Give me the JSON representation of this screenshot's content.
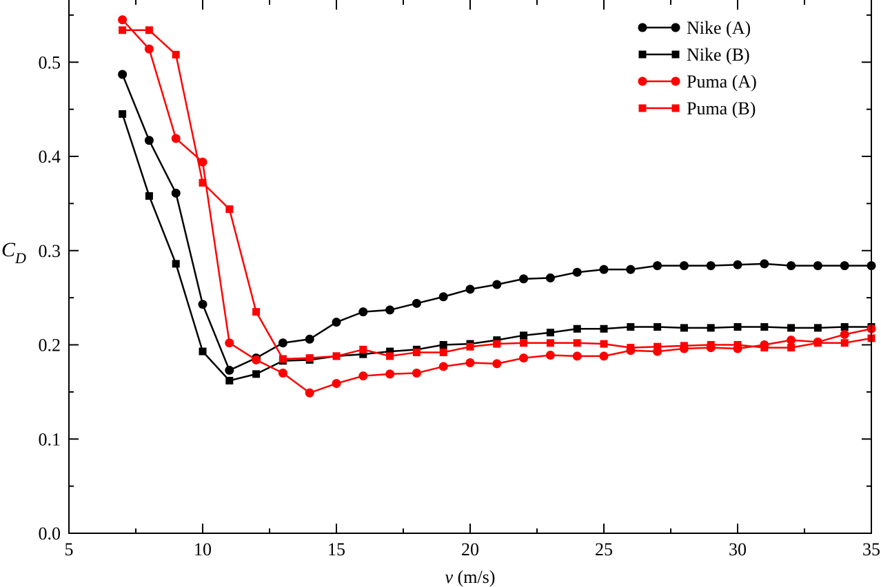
{
  "chart_data": {
    "type": "line",
    "title": "",
    "xlabel_var": "v",
    "xlabel_unit": " (m/s)",
    "ylabel_main": "C",
    "ylabel_sub": "D",
    "xlim": [
      5,
      35
    ],
    "ylim": [
      0,
      0.566
    ],
    "xticks": [
      5,
      10,
      15,
      20,
      25,
      30,
      35
    ],
    "xtick_labels": [
      "5",
      "10",
      "15",
      "20",
      "25",
      "30",
      "35"
    ],
    "yticks": [
      0,
      0.1,
      0.2,
      0.3,
      0.4,
      0.5
    ],
    "ytick_labels": [
      "0.0",
      "0.1",
      "0.2",
      "0.3",
      "0.4",
      "0.5"
    ],
    "legend_position": "top-right",
    "x": [
      7,
      8,
      9,
      10,
      11,
      12,
      13,
      14,
      15,
      16,
      17,
      18,
      19,
      20,
      21,
      22,
      23,
      24,
      25,
      26,
      27,
      28,
      29,
      30,
      31,
      32,
      33,
      34,
      35
    ],
    "series": [
      {
        "name": "Nike (A)",
        "color": "#000000",
        "marker": "circle",
        "values": [
          0.487,
          0.417,
          0.361,
          0.243,
          0.173,
          0.186,
          0.202,
          0.206,
          0.224,
          0.235,
          0.237,
          0.244,
          0.251,
          0.259,
          0.264,
          0.27,
          0.271,
          0.277,
          0.28,
          0.28,
          0.284,
          0.284,
          0.284,
          0.285,
          0.286,
          0.284,
          0.284,
          0.284,
          0.284
        ]
      },
      {
        "name": "Nike (B)",
        "color": "#000000",
        "marker": "square",
        "values": [
          0.445,
          0.358,
          0.286,
          0.193,
          0.162,
          0.169,
          0.183,
          0.184,
          0.188,
          0.19,
          0.193,
          0.195,
          0.2,
          0.201,
          0.205,
          0.21,
          0.213,
          0.217,
          0.217,
          0.219,
          0.219,
          0.218,
          0.218,
          0.219,
          0.219,
          0.218,
          0.218,
          0.219,
          0.219
        ]
      },
      {
        "name": "Puma (A)",
        "color": "#ff0000",
        "marker": "circle",
        "values": [
          0.545,
          0.514,
          0.419,
          0.394,
          0.202,
          0.184,
          0.17,
          0.149,
          0.159,
          0.167,
          0.169,
          0.17,
          0.177,
          0.181,
          0.18,
          0.186,
          0.189,
          0.188,
          0.188,
          0.194,
          0.193,
          0.196,
          0.197,
          0.196,
          0.2,
          0.205,
          0.203,
          0.211,
          0.217
        ]
      },
      {
        "name": "Puma (B)",
        "color": "#ff0000",
        "marker": "square",
        "values": [
          0.534,
          0.534,
          0.508,
          0.372,
          0.344,
          0.235,
          0.185,
          0.186,
          0.188,
          0.195,
          0.188,
          0.192,
          0.192,
          0.198,
          0.201,
          0.202,
          0.202,
          0.202,
          0.201,
          0.197,
          0.198,
          0.199,
          0.2,
          0.2,
          0.197,
          0.197,
          0.202,
          0.202,
          0.207
        ]
      }
    ]
  }
}
